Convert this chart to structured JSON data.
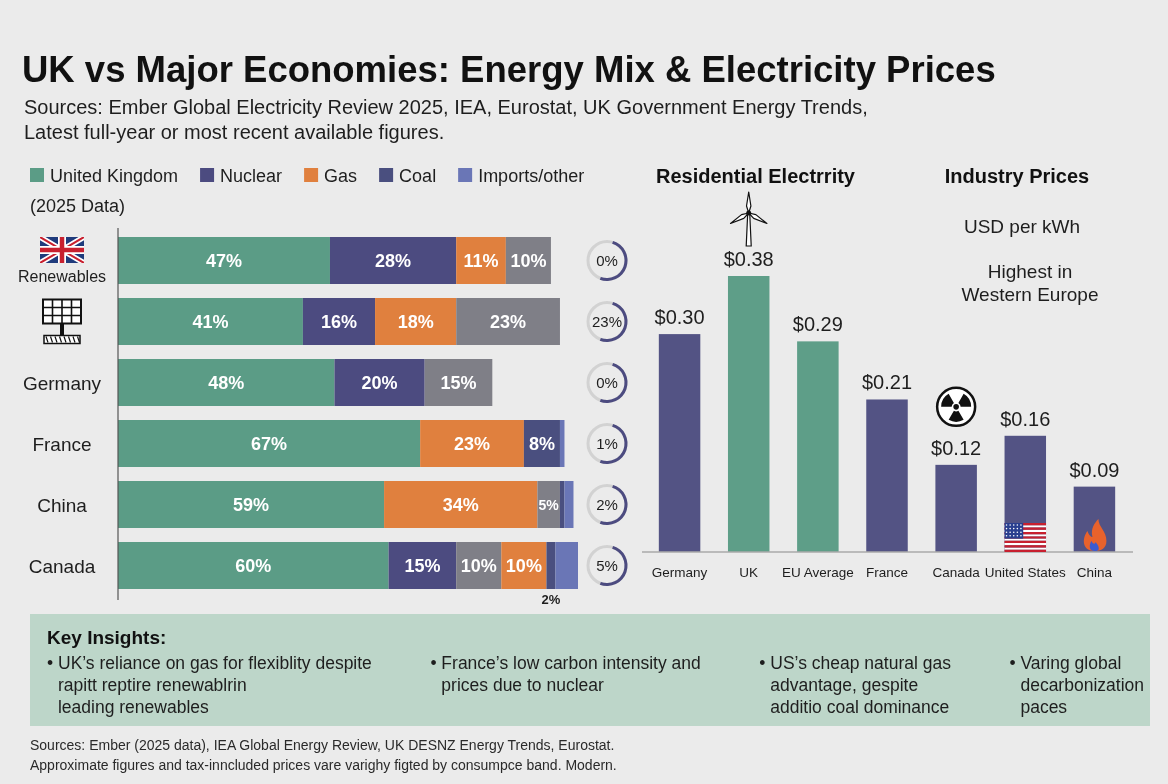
{
  "chart_data": [
    {
      "type": "bar",
      "orientation": "horizontal",
      "stacked": true,
      "title": "UK vs Major Economies: Energy Mix & Electricity Prices",
      "subtitle": "Sources: Ember Global Electricity Review 2025, IEA, Eurostat, UK Government Energy Trends,\nLatest full-year or most recent available figures.",
      "legend": "top",
      "legend_title": "(2025 Data)",
      "categories": [
        "Renewables",
        null,
        "Germany",
        "France",
        "China",
        "Canada"
      ],
      "series": [
        {
          "name": "United Kingdom",
          "color": "#5b9c86",
          "values": [
            47,
            41,
            48,
            67,
            59,
            60
          ],
          "value_labels": [
            "47%",
            "41%",
            "48%",
            "67%",
            "59%",
            "60%"
          ]
        },
        {
          "name": "Nuclear",
          "color": "#4c4b80",
          "values": [
            28,
            16,
            20,
            null,
            null,
            15
          ],
          "value_labels": [
            "28%",
            "16%",
            "20%",
            null,
            null,
            "15%"
          ]
        },
        {
          "color": "#7f7f87",
          "values": [
            null,
            null,
            null,
            null,
            null,
            10
          ],
          "value_labels": [
            null,
            null,
            null,
            null,
            null,
            "10%"
          ]
        },
        {
          "name": "Gas",
          "color": "#e0803e",
          "values": [
            11,
            18,
            null,
            23,
            34,
            10
          ],
          "value_labels": [
            "11%",
            "18%",
            null,
            "23%",
            "34%",
            "10%"
          ]
        },
        {
          "color": "#7f7f87",
          "values": [
            10,
            23,
            15,
            null,
            5,
            null
          ],
          "value_labels": [
            "10%",
            "23%",
            "15%",
            null,
            "5%",
            null
          ]
        },
        {
          "name": "Coal",
          "color": "#4a4f7f",
          "values": [
            null,
            null,
            null,
            8,
            1,
            2
          ],
          "value_labels": [
            null,
            null,
            null,
            "8%",
            null,
            "2%"
          ]
        },
        {
          "name": "Imports/other",
          "color": "#6a76b6",
          "values": [
            null,
            null,
            null,
            1,
            2,
            5
          ]
        }
      ],
      "annotations": [
        "0%",
        "23%",
        "0%",
        "1%",
        "2%",
        "5%"
      ]
    },
    {
      "type": "bar",
      "title": "Residential Electrrity",
      "subtitle": "Industry Prices",
      "ylabel": "USD per kWh",
      "annotations": [
        "Highest in\nWestern Europe"
      ],
      "categories": [
        "Germany",
        "UK",
        "EU Average",
        "France",
        "Canada",
        "United States",
        "China"
      ],
      "values": [
        0.3,
        0.38,
        0.29,
        0.21,
        0.12,
        0.16,
        0.09
      ],
      "colors": [
        "#535384",
        "#5e9e88",
        "#5e9e88",
        "#535384",
        "#535384",
        "#535384",
        "#535384"
      ],
      "value_labels": [
        "$0.30",
        "$0.38",
        "$0.29",
        "$0.21",
        "$0.12",
        "$0.16",
        "$0.09"
      ]
    },
    {
      "type": "other",
      "title": "Key Insights:",
      "annotations": [
        "• UK’s reliance on gas for flexiblity despite\nrapitt reptire renewablrin\nleading renewables",
        "• France’s low carbon intensity and\nprices due to nuclear",
        "• US’s cheap natural gas\nadvantage, gespite\nadditio coal dominance",
        "• Varing global\ndecarbonization\npaces"
      ]
    },
    {
      "type": "other",
      "annotations": [
        "Sources: Ember (2025 data), IEA Global Energy Review, UK DESNZ Energy Trends, Eurostat.",
        "Approximate figures and tax-inncluded prices vare varighy figted by consumpce band. Modern."
      ]
    }
  ]
}
